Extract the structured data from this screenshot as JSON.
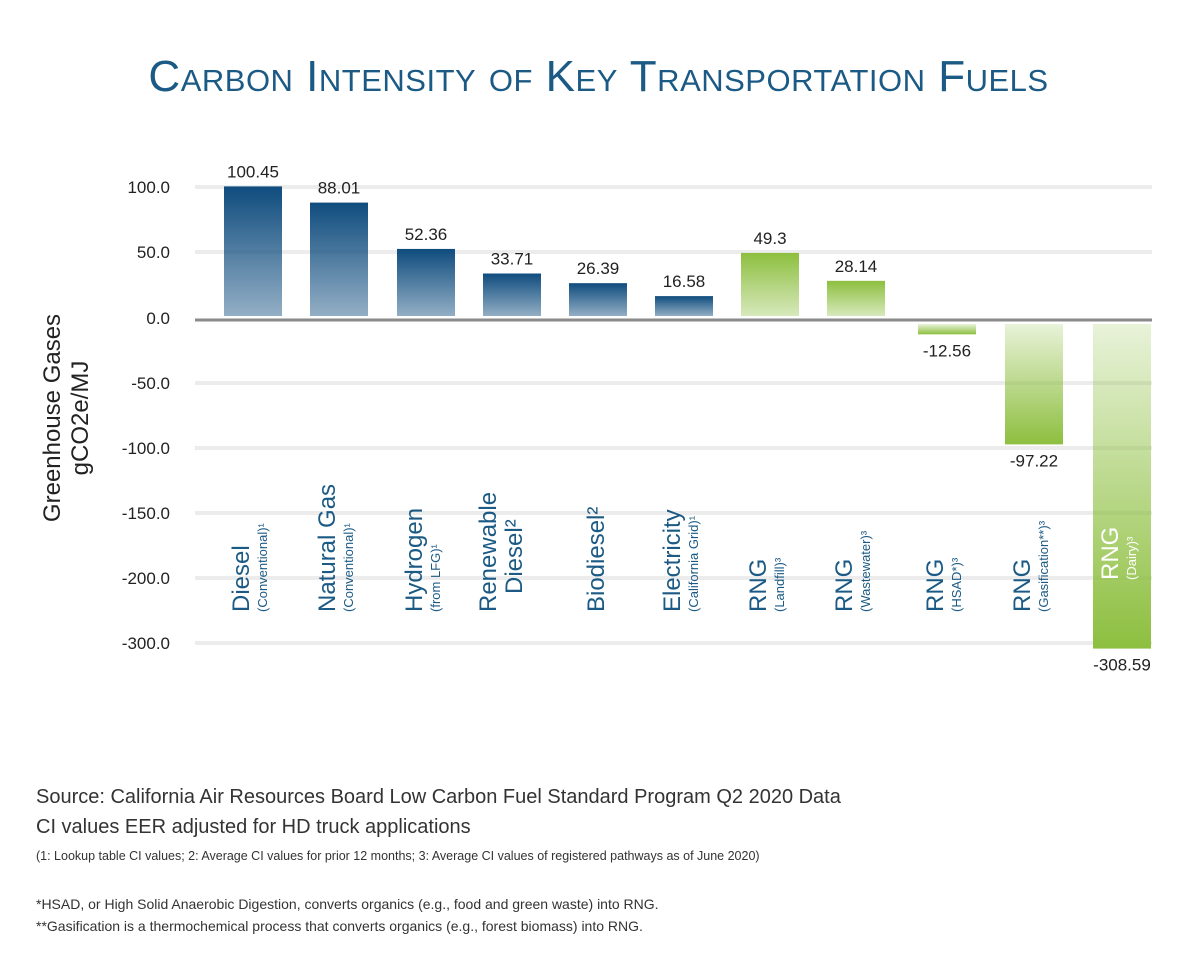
{
  "chart_data": {
    "type": "bar",
    "title": "Carbon Intensity of Key Transportation Fuels",
    "ylabel": [
      "Greenhouse Gases",
      "gCO2e/MJ"
    ],
    "yticks": [
      100,
      50,
      0,
      -50,
      -100,
      -150,
      -200,
      -300
    ],
    "ytick_labels": [
      "100.0",
      "50.0",
      "0.0",
      "-50.0",
      "-100.0",
      "-150.0",
      "-200.0",
      "-300.0"
    ],
    "grid": true,
    "categories": [
      {
        "name": "Diesel",
        "sub": "(Conventional)¹",
        "value": 100.45,
        "label": "100.45",
        "group": "conventional"
      },
      {
        "name": "Natural Gas",
        "sub": "(Conventional)¹",
        "value": 88.01,
        "label": "88.01",
        "group": "conventional"
      },
      {
        "name": "Hydrogen",
        "sub": "(from LFG)¹",
        "value": 52.36,
        "label": "52.36",
        "group": "conventional"
      },
      {
        "name": "Renewable Diesel²",
        "name2": "Renewable",
        "name3": "Diesel²",
        "sub": "",
        "value": 33.71,
        "label": "33.71",
        "group": "conventional"
      },
      {
        "name": "Biodiesel²",
        "sub": "",
        "value": 26.39,
        "label": "26.39",
        "group": "conventional"
      },
      {
        "name": "Electricity",
        "sub": "(California Grid)¹",
        "value": 16.58,
        "label": "16.58",
        "group": "conventional"
      },
      {
        "name": "RNG",
        "sub": "(Landfill)³",
        "value": 49.3,
        "label": "49.3",
        "group": "rng"
      },
      {
        "name": "RNG",
        "sub": "(Wastewater)³",
        "value": 28.14,
        "label": "28.14",
        "group": "rng"
      },
      {
        "name": "RNG",
        "sub": "(HSAD*)³",
        "value": -12.56,
        "label": "-12.56",
        "group": "rng"
      },
      {
        "name": "RNG",
        "sub": "(Gasification**)³",
        "value": -97.22,
        "label": "-97.22",
        "group": "rng"
      },
      {
        "name": "RNG",
        "sub": "(Dairy)³",
        "value": -308.59,
        "label": "-308.59",
        "group": "rng"
      }
    ],
    "colors": {
      "conventional": "#0f4c7e",
      "rng": "#8dbf3f",
      "label_text": "#1b5a84"
    }
  },
  "notes": {
    "source": "Source: California Air Resources Board Low Carbon Fuel Standard Program Q2 2020 Data",
    "ci": "CI values EER adjusted for HD truck applications",
    "legend": "(1: Lookup table CI values; 2: Average CI values for prior 12 months; 3: Average CI values of registered pathways as of June 2020)",
    "hsad": "*HSAD, or High Solid Anaerobic Digestion, converts organics (e.g., food and green waste) into RNG.",
    "gasification": "**Gasification is a thermochemical process that converts organics (e.g., forest biomass) into RNG."
  }
}
